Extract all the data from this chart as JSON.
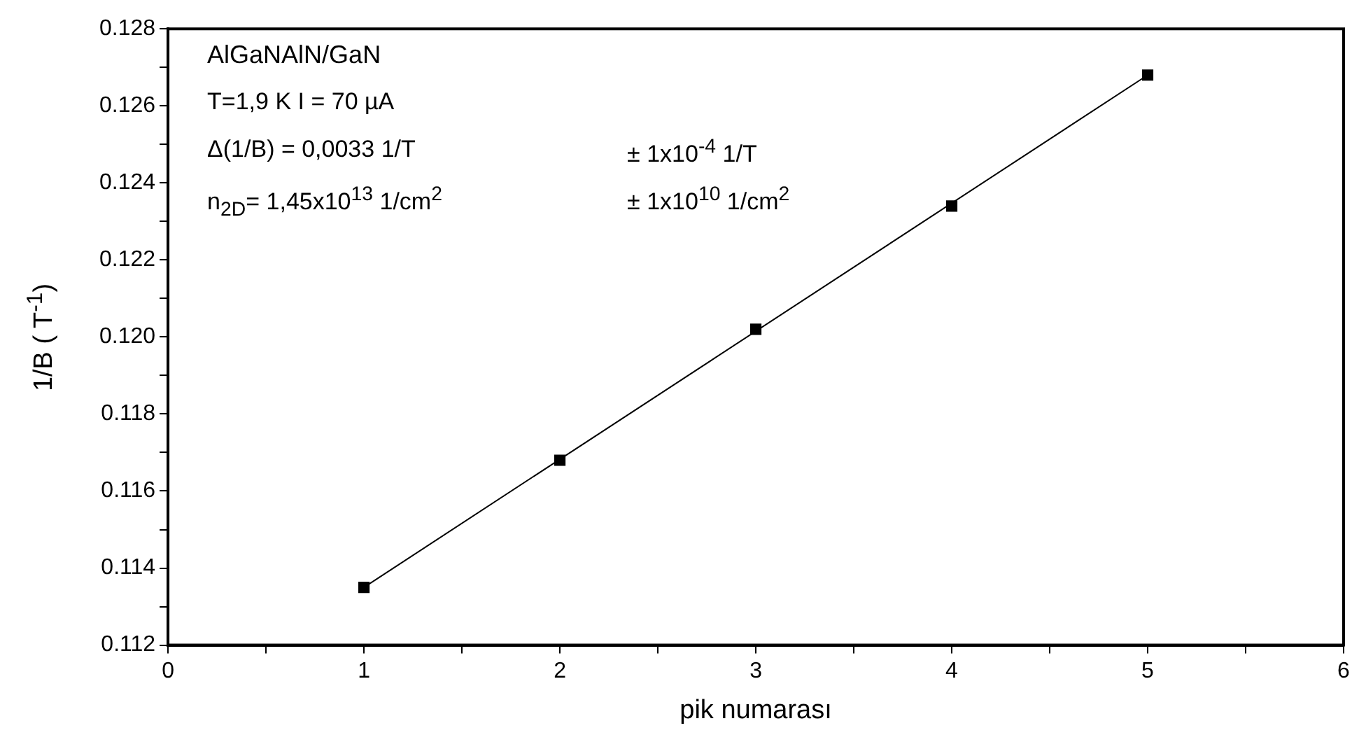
{
  "chart_data": {
    "type": "scatter",
    "xlabel": "pik numarası",
    "ylabel": "1/B ( T$^{-1}$)",
    "x": [
      1,
      2,
      3,
      4,
      5
    ],
    "series": [
      {
        "type": "scatter",
        "color": "#000000",
        "marker": "square",
        "values": [
          0.1135,
          0.1168,
          0.1202,
          0.1234,
          0.1268
        ]
      },
      {
        "type": "line",
        "color": "#000000",
        "marker": "none",
        "x": [
          1,
          5
        ],
        "values": [
          0.1135,
          0.1268
        ]
      }
    ],
    "xlim": [
      0,
      6
    ],
    "xticks": [
      0,
      {
        "value": 0.5,
        "label": null
      },
      1,
      {
        "value": 1.5,
        "label": null
      },
      2,
      {
        "value": 2.5,
        "label": null
      },
      3,
      {
        "value": 3.5,
        "label": null
      },
      4,
      {
        "value": 4.5,
        "label": null
      },
      5,
      {
        "value": 5.5,
        "label": null
      },
      6
    ],
    "ylim": [
      0.112,
      0.128
    ],
    "yticks": [
      {
        "value": 0.112,
        "label": "0.112"
      },
      {
        "value": 0.113,
        "label": null
      },
      {
        "value": 0.114,
        "label": "0.114"
      },
      {
        "value": 0.115,
        "label": null
      },
      {
        "value": 0.116,
        "label": "0.116"
      },
      {
        "value": 0.117,
        "label": null
      },
      {
        "value": 0.118,
        "label": "0.118"
      },
      {
        "value": 0.119,
        "label": null
      },
      {
        "value": 0.12,
        "label": "0.120"
      },
      {
        "value": 0.121,
        "label": null
      },
      {
        "value": 0.122,
        "label": "0.122"
      },
      {
        "value": 0.123,
        "label": null
      },
      {
        "value": 0.124,
        "label": "0.124"
      },
      {
        "value": 0.125,
        "label": null
      },
      {
        "value": 0.126,
        "label": "0.126"
      },
      {
        "value": 0.127,
        "label": null
      },
      {
        "value": 0.128,
        "label": "0.128"
      }
    ],
    "grid": false,
    "legend": false,
    "annotations": [
      "AlGaNAlN/GaN",
      "T=1,9 K  I = 70 µA",
      "Δ(1/B) = 0,0033 1/T",
      "±  1x10$^{-4}$ 1/T",
      "n$_{2D}$= 1,45x10$^{13}$ 1/cm$^{2}$",
      "± 1x10$^{10}$ 1/cm$^{2}$"
    ]
  }
}
